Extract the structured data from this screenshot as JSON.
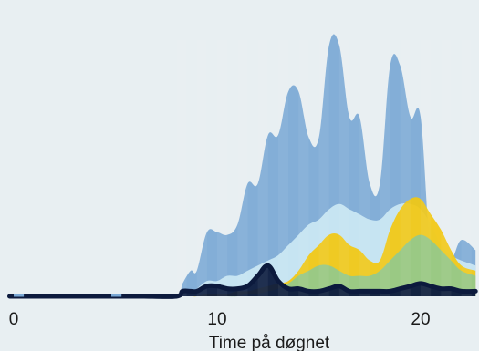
{
  "chart_data": {
    "type": "area",
    "xlabel": "Time på døgnet",
    "ylabel": "",
    "xlim": [
      -0.2,
      22.7
    ],
    "ylim": [
      0,
      100
    ],
    "x_ticks": [
      0,
      10,
      20
    ],
    "x_tick_labels": [
      "0",
      "10",
      "20"
    ],
    "grid": false,
    "legend": "none",
    "x": [
      -0.2,
      0.6,
      5.2,
      5.6,
      6.0,
      6.4,
      8.0,
      8.3,
      8.7,
      9.0,
      9.5,
      10.0,
      10.5,
      11.0,
      11.5,
      12.0,
      12.5,
      13.0,
      13.5,
      14.0,
      14.5,
      15.0,
      15.5,
      16.0,
      16.5,
      17.0,
      17.5,
      18.0,
      18.5,
      19.0,
      19.5,
      20.0,
      20.5,
      21.0,
      21.5,
      22.0,
      22.7
    ],
    "series": [
      {
        "color": "#7aa8d5",
        "values": [
          0,
          0,
          0,
          0,
          0,
          0,
          0,
          5,
          10,
          10,
          25,
          25,
          24,
          28,
          44,
          44,
          63,
          63,
          80,
          80,
          62,
          62,
          98,
          98,
          70,
          70,
          44,
          44,
          90,
          90,
          70,
          70,
          16,
          16,
          14,
          22,
          18
        ]
      },
      {
        "color": "#cce8f4",
        "values": [
          0,
          0,
          0,
          0,
          0,
          0,
          0,
          1,
          2,
          3,
          6,
          6,
          8,
          8,
          10,
          12,
          14,
          16,
          20,
          24,
          28,
          30,
          34,
          36,
          34,
          32,
          30,
          30,
          34,
          36,
          36,
          34,
          28,
          20,
          16,
          14,
          12
        ]
      },
      {
        "color": "#f2c811",
        "values": [
          0,
          0,
          0,
          0,
          0,
          0,
          0,
          0,
          0,
          0,
          1,
          1,
          1,
          2,
          2,
          3,
          4,
          5,
          6,
          10,
          16,
          20,
          24,
          24,
          20,
          18,
          14,
          14,
          26,
          34,
          38,
          38,
          32,
          26,
          18,
          12,
          10
        ]
      },
      {
        "color": "#93c98d",
        "values": [
          0,
          0,
          0,
          0,
          0,
          0,
          0,
          0,
          0,
          0,
          0,
          0,
          0,
          0,
          1,
          1,
          2,
          3,
          5,
          8,
          10,
          12,
          12,
          10,
          8,
          8,
          8,
          10,
          14,
          18,
          22,
          24,
          22,
          18,
          14,
          10,
          8
        ]
      },
      {
        "color": "#0c1a3d",
        "values": [
          0,
          0,
          0,
          0,
          0,
          0,
          0,
          2,
          2,
          2,
          4,
          4,
          3,
          3,
          4,
          8,
          12,
          6,
          3,
          3,
          2,
          2,
          3,
          4,
          2,
          2,
          2,
          2,
          2,
          3,
          4,
          5,
          4,
          3,
          3,
          2,
          2
        ]
      }
    ]
  }
}
